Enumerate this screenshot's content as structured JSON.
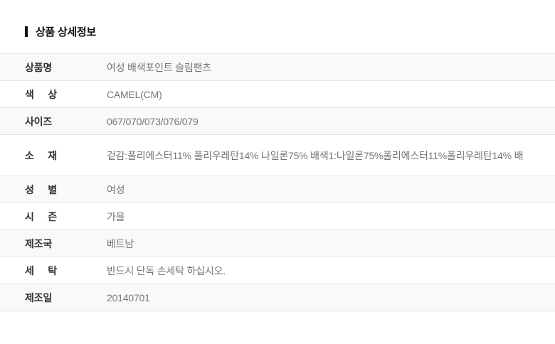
{
  "header": {
    "title": "상품 상세정보"
  },
  "table": {
    "rows": [
      {
        "label": "상품명",
        "value": "여성 배색포인트 슬림팬츠"
      },
      {
        "label": "색 상",
        "value": "CAMEL(CM)"
      },
      {
        "label": "사이즈",
        "value": "067/070/073/076/079"
      },
      {
        "label": "소 재",
        "value": "겉감:폴리에스터11% 폴리우레탄14% 나일론75% 배색1:나일론75%폴리에스터11%폴리우레탄14% 배"
      },
      {
        "label": "성 별",
        "value": "여성"
      },
      {
        "label": "시 즌",
        "value": "가을"
      },
      {
        "label": "제조국",
        "value": "베트남"
      },
      {
        "label": "세 탁",
        "value": "반드시 단독 손세탁 하십시오."
      },
      {
        "label": "제조일",
        "value": "20140701"
      }
    ]
  },
  "colors": {
    "divider": "#e5e5e5",
    "row_alt_bg": "#f9f9f9",
    "label_color": "#333333",
    "value_color": "#767676",
    "header_text": "#111111",
    "header_bar": "#111111"
  }
}
